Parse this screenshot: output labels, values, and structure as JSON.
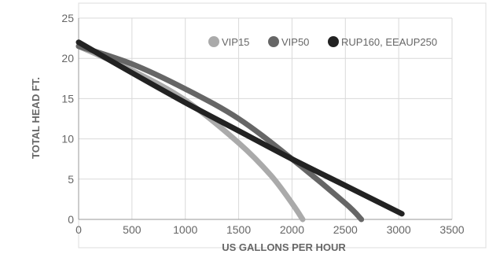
{
  "chart_data": {
    "type": "line",
    "title": "",
    "xlabel": "US GALLONS PER HOUR",
    "ylabel": "TOTAL HEAD FT.",
    "xlim": [
      0,
      3500
    ],
    "ylim": [
      0,
      25
    ],
    "x_ticks": [
      "0",
      "500",
      "1000",
      "1500",
      "2000",
      "2500",
      "3000",
      "3500"
    ],
    "y_ticks": [
      "0",
      "5",
      "10",
      "15",
      "20",
      "25"
    ],
    "grid": true,
    "legend_position": "top-right",
    "series": [
      {
        "name": "VIP15",
        "color": "#aaaaaa",
        "x": [
          0,
          500,
          1000,
          1500,
          1800,
          2000,
          2100
        ],
        "y": [
          21.5,
          18.5,
          14.8,
          9.5,
          5.5,
          2.0,
          0
        ]
      },
      {
        "name": "VIP50",
        "color": "#666666",
        "x": [
          0,
          500,
          1000,
          1500,
          2000,
          2500,
          2650
        ],
        "y": [
          21.5,
          19.3,
          16.2,
          12.5,
          7.5,
          2.0,
          0
        ]
      },
      {
        "name": "RUP160, EEAUP250",
        "color": "#222222",
        "x": [
          0,
          500,
          1000,
          1500,
          2000,
          2500,
          3030
        ],
        "y": [
          22.0,
          18.2,
          14.5,
          11.0,
          7.5,
          4.2,
          0.7
        ]
      }
    ]
  }
}
